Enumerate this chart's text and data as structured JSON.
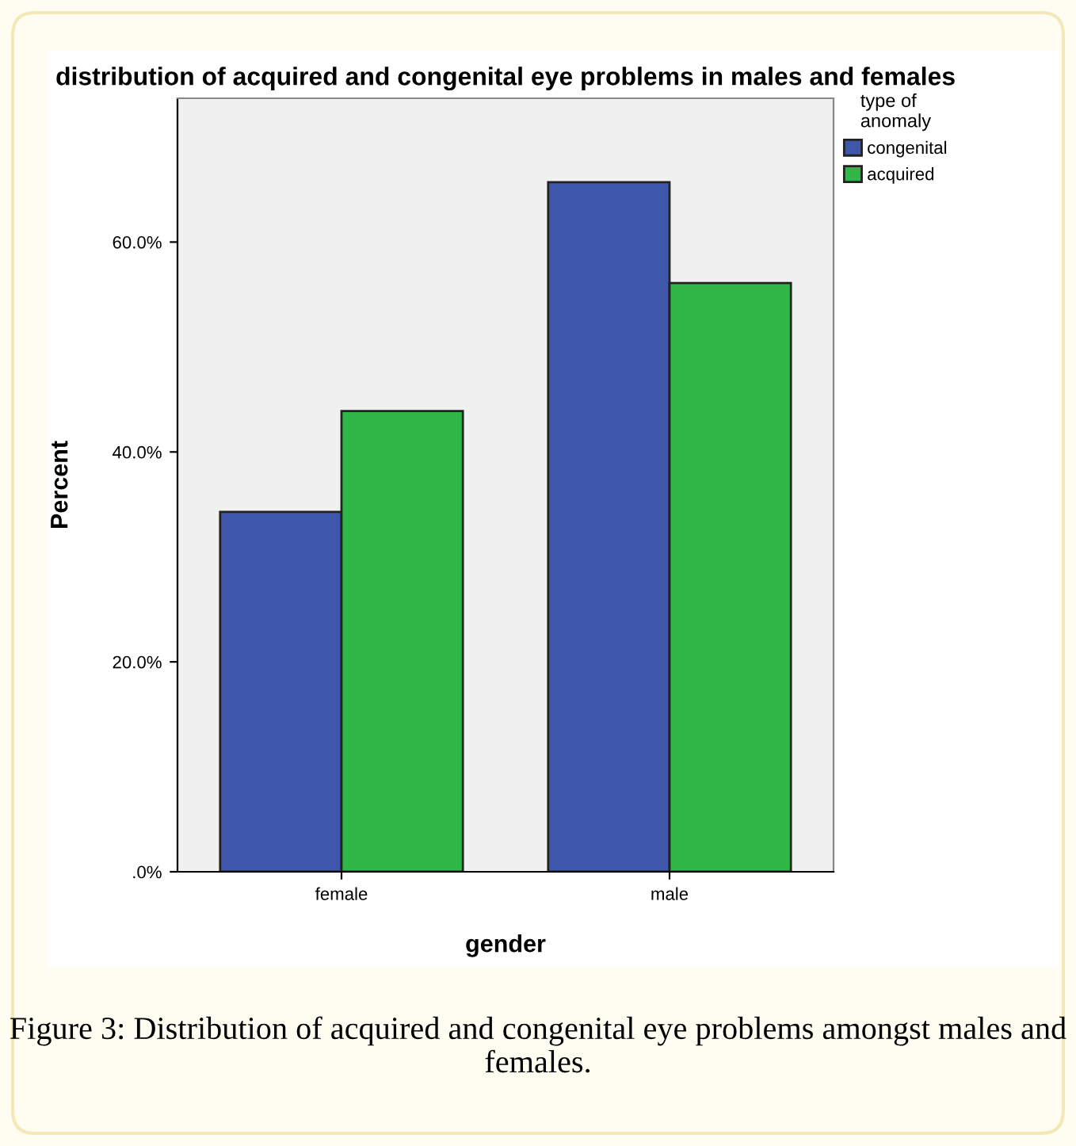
{
  "chart_data": {
    "type": "bar",
    "title": "distribution of acquired and congenital eye problems in males and females",
    "xlabel": "gender",
    "ylabel": "Percent",
    "legend_title": "type of\nanomaly",
    "categories": [
      "female",
      "male"
    ],
    "series": [
      {
        "name": "congenital",
        "color": "#3f57aa",
        "values": [
          34.3,
          65.7
        ]
      },
      {
        "name": "acquired",
        "color": "#2fb848",
        "values": [
          43.9,
          56.1
        ]
      }
    ],
    "ylim": [
      0,
      73.7
    ],
    "yticks": [
      {
        "value": 0,
        "label": ".0%"
      },
      {
        "value": 20,
        "label": "20.0%"
      },
      {
        "value": 40,
        "label": "40.0%"
      },
      {
        "value": 60,
        "label": "60.0%"
      }
    ],
    "grid": false,
    "legend": "top right",
    "annotations": [
      "Figure 3: Distribution of acquired and congenital eye problems amongst males and females."
    ]
  }
}
